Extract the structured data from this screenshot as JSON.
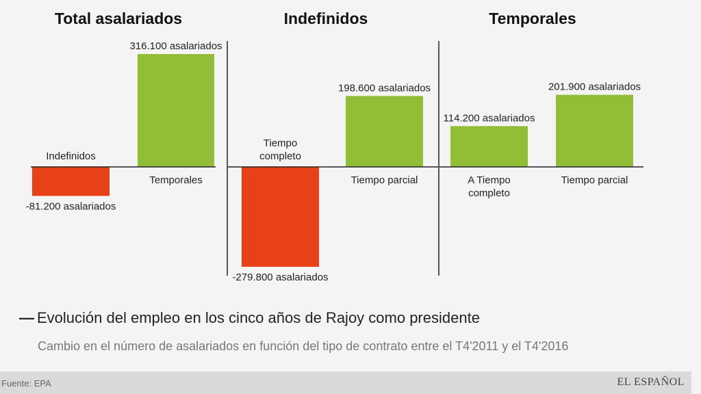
{
  "chart_data": {
    "type": "bar",
    "title": "Evolución del empleo en los cinco años de Rajoy como presidente",
    "subtitle": "Cambio en el número de asalariados en función del tipo de contrato entre el T4'2011 y el T4'2016",
    "unit": "asalariados",
    "panels": [
      {
        "title": "Total asalariados",
        "bars": [
          {
            "category": [
              "Indefinidos"
            ],
            "value": -81200,
            "value_label": "-81.200 asalariados",
            "color": "#e84117"
          },
          {
            "category": [
              "Temporales"
            ],
            "value": 316100,
            "value_label": "316.100 asalariados",
            "color": "#92bd36"
          }
        ]
      },
      {
        "title": "Indefinidos",
        "bars": [
          {
            "category": [
              "Tiempo",
              "completo"
            ],
            "value": -279800,
            "value_label": "-279.800 asalariados",
            "color": "#e84117"
          },
          {
            "category": [
              "Tiempo parcial"
            ],
            "value": 198600,
            "value_label": "198.600 asalariados",
            "color": "#92bd36"
          }
        ]
      },
      {
        "title": "Temporales",
        "bars": [
          {
            "category": [
              "A Tiempo",
              "completo"
            ],
            "value": 114200,
            "value_label": "114.200 asalariados",
            "color": "#92bd36"
          },
          {
            "category": [
              "Tiempo parcial"
            ],
            "value": 201900,
            "value_label": "201.900 asalariados",
            "color": "#92bd36"
          }
        ]
      }
    ]
  },
  "source": "Fuente: EPA",
  "brand": "EL ESPAÑOL"
}
